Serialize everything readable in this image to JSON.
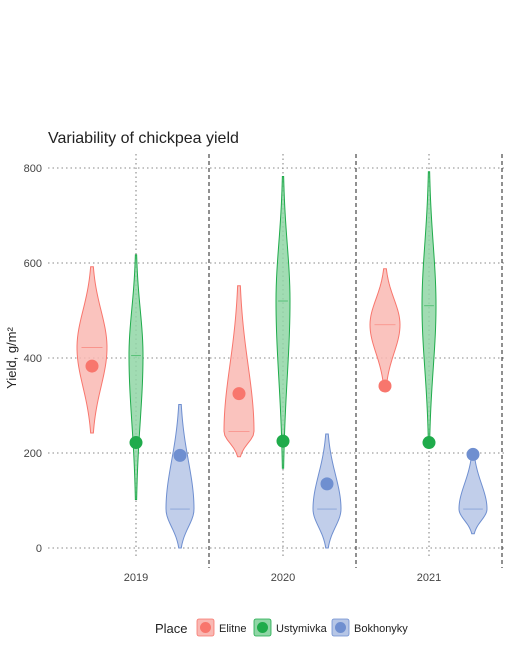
{
  "chart_data": {
    "type": "violin",
    "title": "Variability of chickpea yield",
    "xlabel": "",
    "ylabel": "Yield, g/m²",
    "ylim": [
      0,
      800
    ],
    "yticks": [
      "0",
      "200",
      "400",
      "600",
      "800"
    ],
    "categories": [
      "2019",
      "2020",
      "2021"
    ],
    "legend": {
      "title": "Place",
      "position": "bottom"
    },
    "grid": true,
    "series": [
      {
        "name": "Elitne",
        "color": "#f8766d",
        "fill": "#f9b8b3",
        "violins": [
          {
            "category": "2019",
            "min": 242,
            "max": 592,
            "median": 422,
            "mean": 383
          },
          {
            "category": "2020",
            "min": 192,
            "max": 552,
            "median": 245,
            "mean": 325
          },
          {
            "category": "2021",
            "min": 340,
            "max": 588,
            "median": 470,
            "mean": 341
          }
        ]
      },
      {
        "name": "Ustymivka",
        "color": "#1fab4b",
        "fill": "#90d6a6",
        "violins": [
          {
            "category": "2019",
            "min": 102,
            "max": 617,
            "median": 405,
            "mean": 222
          },
          {
            "category": "2020",
            "min": 168,
            "max": 782,
            "median": 520,
            "mean": 225
          },
          {
            "category": "2021",
            "min": 222,
            "max": 792,
            "median": 510,
            "mean": 222
          }
        ]
      },
      {
        "name": "Bokhonyky",
        "color": "#6f8fd0",
        "fill": "#b6c6e6",
        "violins": [
          {
            "category": "2019",
            "min": 0,
            "max": 302,
            "median": 82,
            "mean": 195
          },
          {
            "category": "2020",
            "min": 0,
            "max": 240,
            "median": 82,
            "mean": 135
          },
          {
            "category": "2021",
            "min": 30,
            "max": 198,
            "median": 82,
            "mean": 197
          }
        ]
      }
    ]
  }
}
